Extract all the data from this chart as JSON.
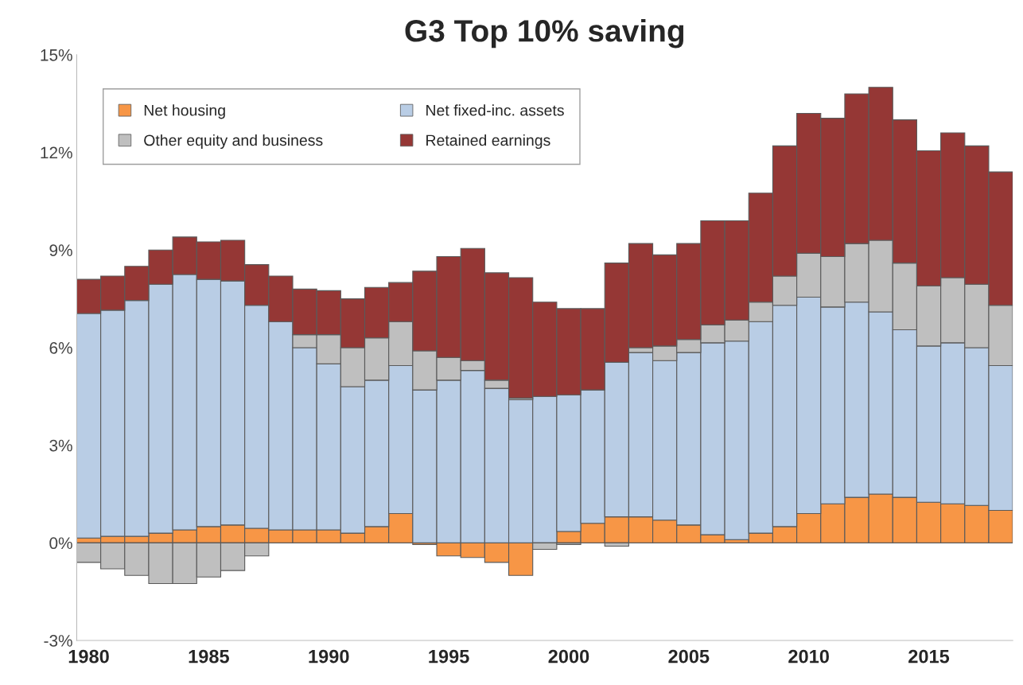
{
  "chart_data": {
    "type": "bar",
    "title": "G3 Top 10% saving",
    "stacked": true,
    "categories": [
      "1980",
      null,
      null,
      null,
      null,
      "1985",
      null,
      null,
      null,
      null,
      "1990",
      null,
      null,
      null,
      null,
      "1995",
      null,
      null,
      null,
      null,
      "2000",
      null,
      null,
      null,
      null,
      "2005",
      null,
      null,
      null,
      null,
      "2010",
      null,
      null,
      null,
      null,
      "2015",
      null,
      null,
      null
    ],
    "series": [
      {
        "name": "Net housing",
        "color": "#f79646",
        "values": [
          0.15,
          0.2,
          0.2,
          0.3,
          0.4,
          0.5,
          0.55,
          0.45,
          0.4,
          0.4,
          0.4,
          0.3,
          0.5,
          0.9,
          -0.05,
          -0.4,
          -0.45,
          -0.6,
          -1.0,
          0,
          0.35,
          0.6,
          0.8,
          0.8,
          0.7,
          0.55,
          0.25,
          0.1,
          0.3,
          0.5,
          0.9,
          1.2,
          1.4,
          1.5,
          1.4,
          1.25,
          1.2,
          1.15,
          1.0
        ]
      },
      {
        "name": "Net fixed-inc. assets",
        "color": "#b9cde5",
        "values": [
          6.9,
          6.95,
          7.25,
          7.65,
          7.85,
          7.6,
          7.5,
          6.85,
          6.4,
          5.6,
          5.1,
          4.5,
          4.5,
          4.55,
          4.7,
          5.0,
          5.3,
          4.75,
          4.4,
          4.5,
          4.2,
          4.1,
          4.75,
          5.05,
          4.9,
          5.3,
          5.9,
          6.1,
          6.5,
          6.8,
          6.65,
          6.05,
          6.0,
          5.6,
          5.15,
          4.8,
          4.95,
          4.85,
          4.45
        ]
      },
      {
        "name": "Other equity and business",
        "color": "#bfbfbf",
        "values": [
          -0.6,
          -0.8,
          -1.0,
          -1.25,
          -1.25,
          -1.05,
          -0.85,
          -0.4,
          0,
          0.4,
          0.9,
          1.2,
          1.3,
          1.35,
          1.2,
          0.7,
          0.3,
          0.25,
          0.05,
          -0.2,
          -0.05,
          0,
          -0.1,
          0.15,
          0.45,
          0.4,
          0.55,
          0.65,
          0.6,
          0.9,
          1.35,
          1.55,
          1.8,
          2.2,
          2.05,
          1.85,
          2.0,
          1.95,
          1.85
        ]
      },
      {
        "name": "Retained earnings",
        "color": "#953735",
        "values": [
          1.05,
          1.05,
          1.05,
          1.05,
          1.15,
          1.15,
          1.25,
          1.25,
          1.4,
          1.4,
          1.35,
          1.5,
          1.55,
          1.2,
          2.45,
          3.1,
          3.45,
          3.3,
          3.7,
          2.9,
          2.65,
          2.5,
          3.05,
          3.2,
          2.8,
          2.95,
          3.2,
          3.05,
          3.35,
          4.0,
          4.3,
          4.25,
          4.6,
          4.7,
          4.4,
          4.15,
          4.45,
          4.25,
          4.1
        ]
      }
    ],
    "ylim": [
      -3,
      15
    ],
    "yticks": [
      {
        "value": -3,
        "label": "-3%"
      },
      {
        "value": 0,
        "label": "0%"
      },
      {
        "value": 3,
        "label": "3%"
      },
      {
        "value": 6,
        "label": "6%"
      },
      {
        "value": 9,
        "label": "9%"
      },
      {
        "value": 12,
        "label": "12%"
      },
      {
        "value": 15,
        "label": "15%"
      }
    ],
    "grid": false,
    "legend": "top left"
  }
}
